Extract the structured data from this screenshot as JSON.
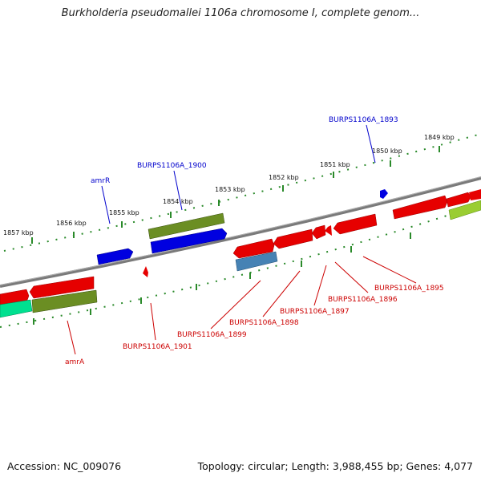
{
  "title": "Burkholderia pseudomallei 1106a chromosome I, complete genom...",
  "footer": {
    "accession": "Accession: NC_009076",
    "info": "Topology: circular; Length: 3,988,455 bp; Genes: 4,077"
  },
  "ruler": [
    "1857 kbp",
    "1856 kbp",
    "1855 kbp",
    "1854 kbp",
    "1853 kbp",
    "1852 kbp",
    "1851 kbp",
    "1850 kbp",
    "1849 kbp"
  ],
  "gene_labels_top": [
    "amrR",
    "BURPS1106A_1900",
    "BURPS1106A_1893"
  ],
  "gene_labels_bottom": [
    "amrA",
    "BURPS1106A_1901",
    "BURPS1106A_1899",
    "BURPS1106A_1898",
    "BURPS1106A_1897",
    "BURPS1106A_1896",
    "BURPS1106A_1895"
  ],
  "colors": {
    "top_label": "#0000cc",
    "bottom_label": "#cc0000",
    "backbone": "#7a7a7a"
  }
}
